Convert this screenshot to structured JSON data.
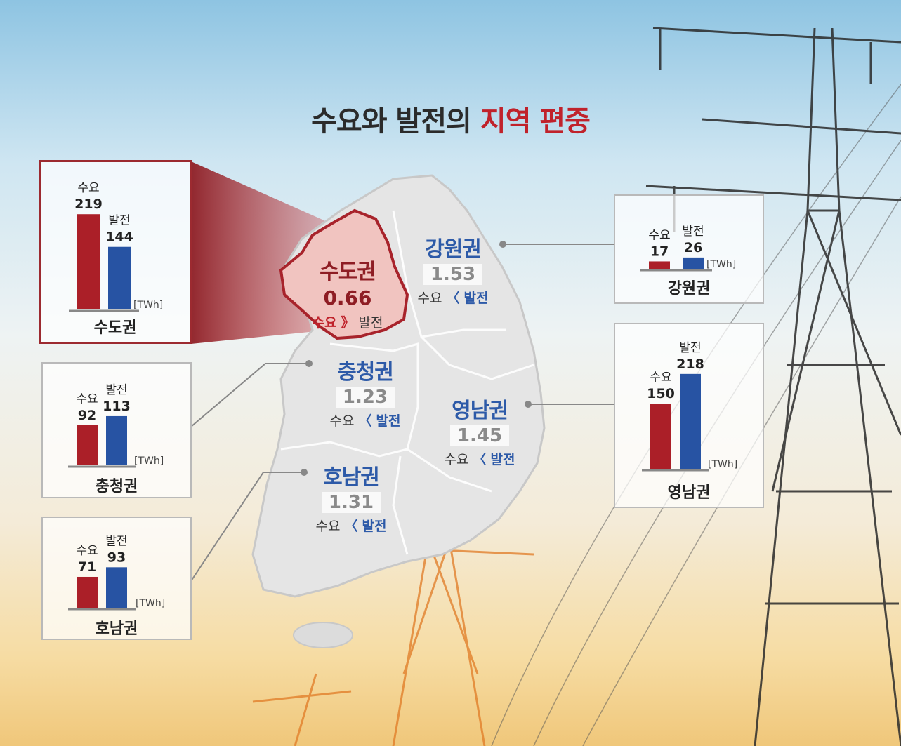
{
  "title": {
    "main": "수요와 발전의",
    "highlight": "지역 편중"
  },
  "colors": {
    "demand": "#ab1f28",
    "generation": "#2753a3",
    "capital_fill": "#f1c4c0",
    "capital_border": "#a8232b"
  },
  "unit": "[TWh]",
  "map_labels": [
    {
      "name": "수도권",
      "ratio": "0.66",
      "demand": "수요",
      "symbol": "》",
      "generation": "발전"
    },
    {
      "name": "강원권",
      "ratio": "1.53",
      "demand": "수요",
      "symbol": "〈",
      "generation": "발전"
    },
    {
      "name": "충청권",
      "ratio": "1.23",
      "demand": "수요",
      "symbol": "〈",
      "generation": "발전"
    },
    {
      "name": "영남권",
      "ratio": "1.45",
      "demand": "수요",
      "symbol": "〈",
      "generation": "발전"
    },
    {
      "name": "호남권",
      "ratio": "1.31",
      "demand": "수요",
      "symbol": "〈",
      "generation": "발전"
    }
  ],
  "chart_data": [
    {
      "type": "bar",
      "title": "수도권",
      "categories": [
        "수요",
        "발전"
      ],
      "values": [
        219,
        144
      ],
      "ylabel": "[TWh]"
    },
    {
      "type": "bar",
      "title": "충청권",
      "categories": [
        "수요",
        "발전"
      ],
      "values": [
        92,
        113
      ],
      "ylabel": "[TWh]"
    },
    {
      "type": "bar",
      "title": "호남권",
      "categories": [
        "수요",
        "발전"
      ],
      "values": [
        71,
        93
      ],
      "ylabel": "[TWh]"
    },
    {
      "type": "bar",
      "title": "강원권",
      "categories": [
        "수요",
        "발전"
      ],
      "values": [
        17,
        26
      ],
      "ylabel": "[TWh]"
    },
    {
      "type": "bar",
      "title": "영남권",
      "categories": [
        "수요",
        "발전"
      ],
      "values": [
        150,
        218
      ],
      "ylabel": "[TWh]"
    }
  ]
}
